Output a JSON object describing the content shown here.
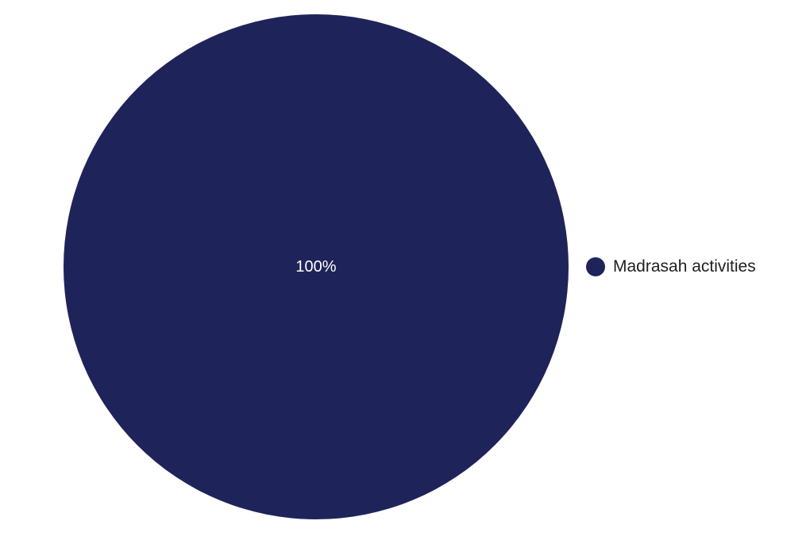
{
  "chart_data": {
    "type": "pie",
    "slices": [
      {
        "label": "Madrasah activities",
        "value": 100,
        "display_label": "100%",
        "color": "#1e245a"
      }
    ],
    "legend_position": "right"
  },
  "colors": {
    "background": "#ffffff",
    "slice_label": "#ffffff",
    "legend_text": "#1f1f1f"
  }
}
